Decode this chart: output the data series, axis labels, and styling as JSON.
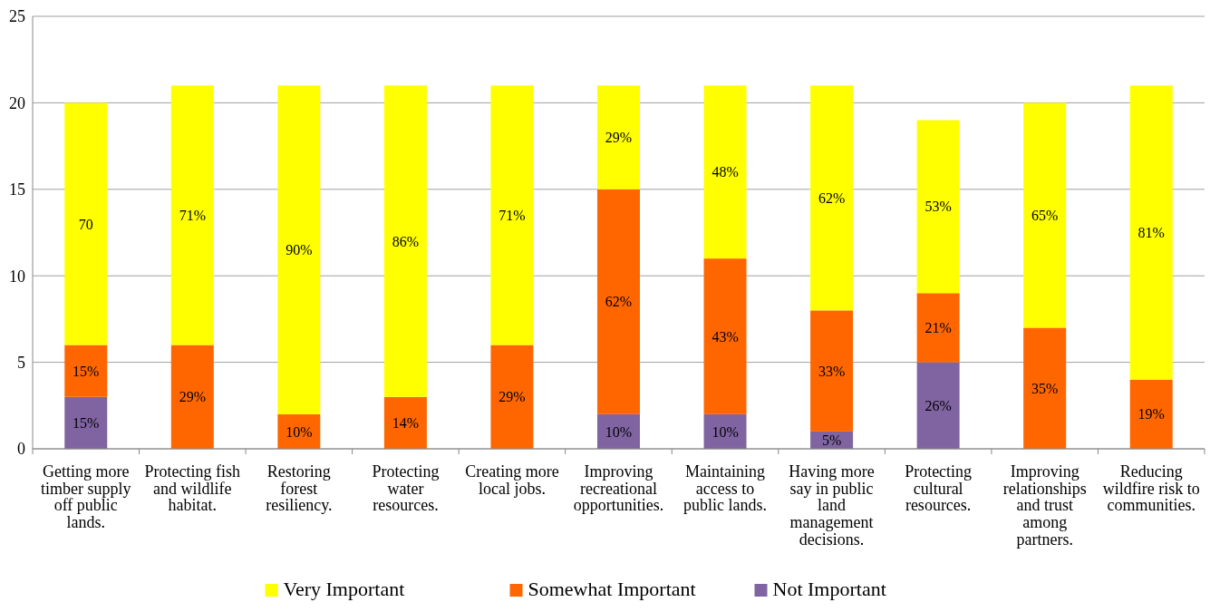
{
  "chart_data": {
    "type": "bar",
    "stacked": true,
    "categories": [
      "Getting more timber supply off public lands.",
      "Protecting fish and wildlife habitat.",
      "Restoring forest resiliency.",
      "Protecting water resources.",
      "Creating more local jobs.",
      "Improving recreational opportunities.",
      "Maintaining access to public lands.",
      "Having more say in public land management decisions.",
      "Protecting cultural resources.",
      "Improving relationships and trust among partners.",
      "Reducing wildfire risk to communities."
    ],
    "series": [
      {
        "name": "Not Important",
        "color": "#8064a2",
        "values": [
          3,
          0,
          0,
          0,
          0,
          2,
          2,
          1,
          5,
          0,
          0
        ]
      },
      {
        "name": "Somewhat Important",
        "color": "#ff6600",
        "values": [
          3,
          6,
          2,
          3,
          6,
          13,
          9,
          7,
          4,
          7,
          4
        ]
      },
      {
        "name": "Very Important",
        "color": "#ffff00",
        "values": [
          14,
          15,
          19,
          18,
          15,
          6,
          10,
          13,
          10,
          13,
          17
        ]
      }
    ],
    "annotations": [
      "15%",
      "15%",
      "70",
      "29%",
      "71%",
      "10%",
      "90%",
      "14%",
      "86%",
      "29%",
      "71%",
      "10%",
      "62%",
      "29%",
      "10%",
      "43%",
      "48%",
      "5%",
      "33%",
      "62%",
      "26%",
      "21%",
      "53%",
      "35%",
      "65%",
      "19%",
      "81%"
    ],
    "ylim": [
      0,
      25
    ],
    "yticks": [
      0,
      5,
      10,
      15,
      20,
      25
    ],
    "grid": "y",
    "legend": "bottom"
  }
}
